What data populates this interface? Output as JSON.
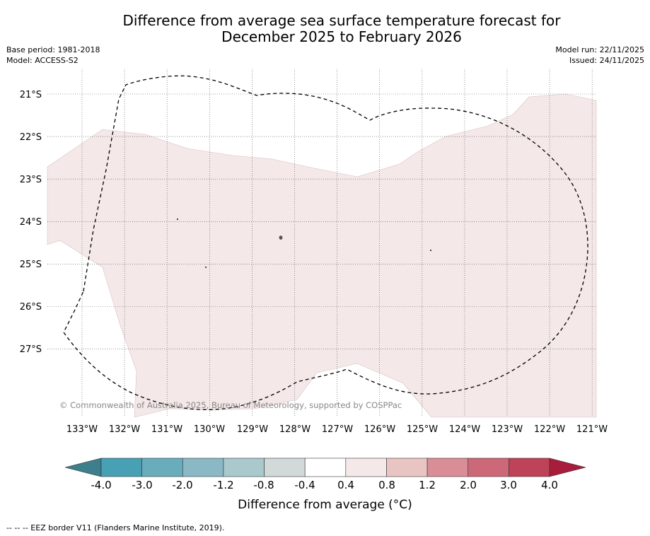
{
  "title_line1": "Difference from average sea surface temperature forecast for",
  "title_line2": "December 2025 to February 2026",
  "base_period": "Base period: 1981-2018",
  "model": "Model: ACCESS-S2",
  "model_run": "Model run: 22/11/2025",
  "issued": "Issued: 24/11/2025",
  "copyright": "© Commonwealth of Australia 2025, Bureau of Meteorology, supported by COSPPac",
  "lat_labels": [
    "21°S",
    "22°S",
    "23°S",
    "24°S",
    "25°S",
    "26°S",
    "27°S"
  ],
  "lon_labels": [
    "133°W",
    "132°W",
    "131°W",
    "130°W",
    "129°W",
    "128°W",
    "127°W",
    "126°W",
    "125°W",
    "124°W",
    "123°W",
    "122°W",
    "121°W"
  ],
  "colorbar": {
    "title": "Difference from average (°C)",
    "ticks": [
      "-4.0",
      "-3.0",
      "-2.0",
      "-1.2",
      "-0.8",
      "-0.4",
      "0.4",
      "0.8",
      "1.2",
      "2.0",
      "3.0",
      "4.0"
    ],
    "colors": [
      "#47a0b3",
      "#69adbc",
      "#8ab8c4",
      "#a9c9cd",
      "#d1d9d9",
      "#ffffff",
      "#f5e8e8",
      "#e8c5c2",
      "#d98d97",
      "#cc6878",
      "#be4358"
    ],
    "under_color": "#3d7f8c",
    "over_color": "#a81c3c"
  },
  "field_color": "#f4e8e8",
  "footnote": "--  --  -- EEZ border V11 (Flanders Marine Institute, 2019)."
}
